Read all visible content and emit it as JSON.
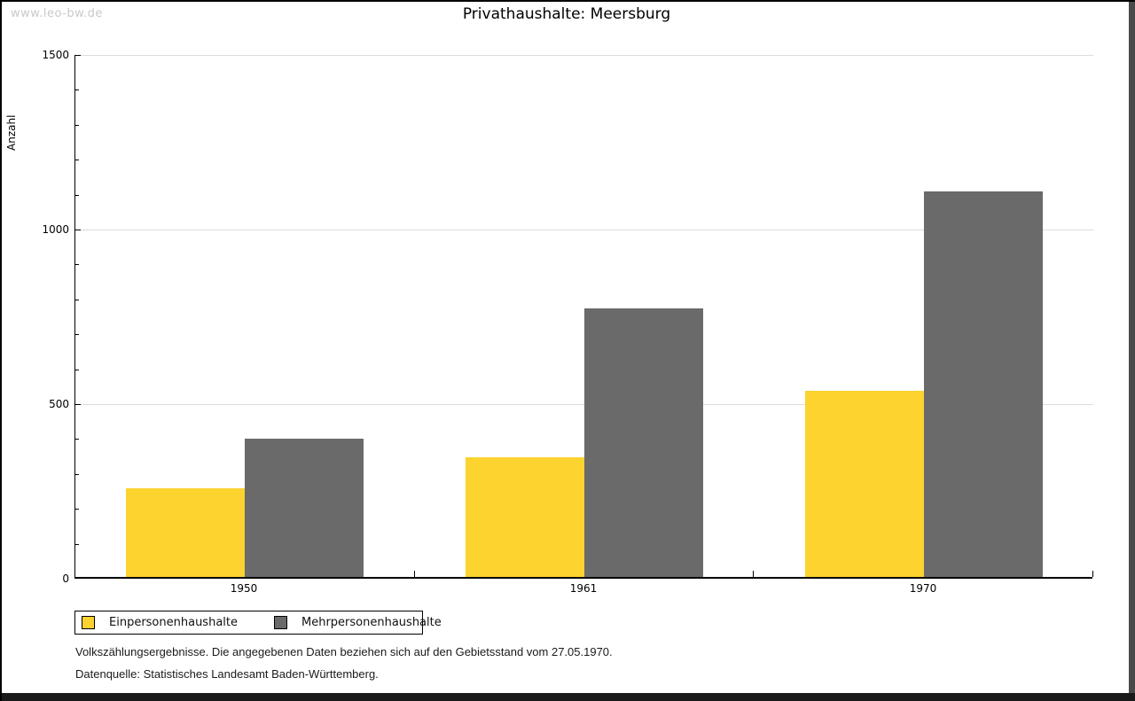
{
  "watermark": "www.leo-bw.de",
  "header": {
    "title": "Privathaushalte: Meersburg"
  },
  "chart_data": {
    "type": "bar",
    "title": "Privathaushalte: Meersburg",
    "ylabel": "Anzahl",
    "xlabel": "",
    "ylim": [
      0,
      1500
    ],
    "ytick_major": [
      0,
      500,
      1000,
      1500
    ],
    "ytick_minor_step": 100,
    "grid": "horizontal",
    "legend_position": "bottom-left",
    "categories": [
      "1950",
      "1961",
      "1970"
    ],
    "series": [
      {
        "name": "Einpersonenhaushalte",
        "color": "#FCD32F",
        "values": [
          253,
          342,
          533
        ]
      },
      {
        "name": "Mehrpersonenhaushalte",
        "color": "#6A6A6A",
        "values": [
          395,
          768,
          1105
        ]
      }
    ]
  },
  "footnotes": [
    "Volkszählungsergebnisse. Die angegebenen Daten beziehen sich auf den Gebietsstand vom 27.05.1970.",
    "Datenquelle: Statistisches Landesamt Baden-Württemberg."
  ],
  "colors": {
    "grid": "#DCDCDC",
    "axis": "#000000",
    "watermark": "#C9C9C9",
    "frame_right": "#4A4A4A",
    "frame_bottom": "#1A1A1A"
  }
}
